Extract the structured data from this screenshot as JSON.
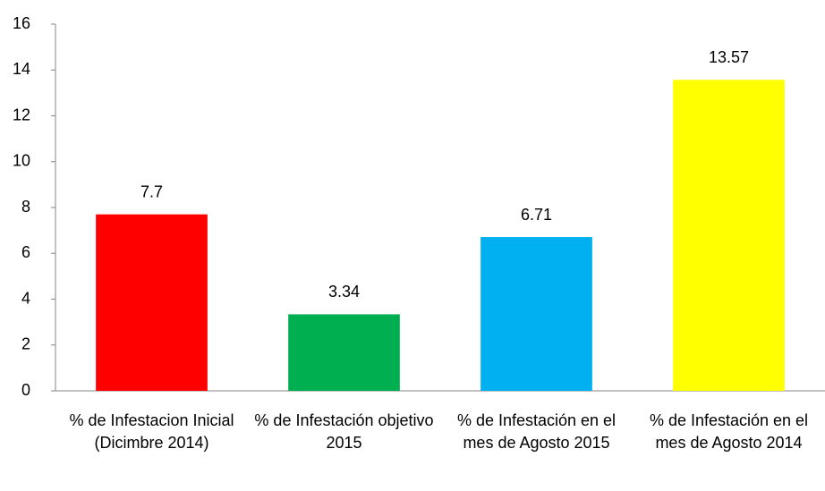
{
  "chart_data": {
    "type": "bar",
    "categories": [
      "% de Infestacion Inicial (Dicimbre 2014)",
      "% de Infestación objetivo 2015",
      "% de Infestación en el mes de Agosto 2015",
      "% de Infestación en el mes de Agosto 2014"
    ],
    "values": [
      7.7,
      3.34,
      6.71,
      13.57
    ],
    "colors": [
      "#ff0000",
      "#00b050",
      "#00b0f0",
      "#ffff00"
    ],
    "ylim": [
      0,
      16
    ],
    "yticks": [
      0,
      2,
      4,
      6,
      8,
      10,
      12,
      14,
      16
    ],
    "grid": false
  }
}
